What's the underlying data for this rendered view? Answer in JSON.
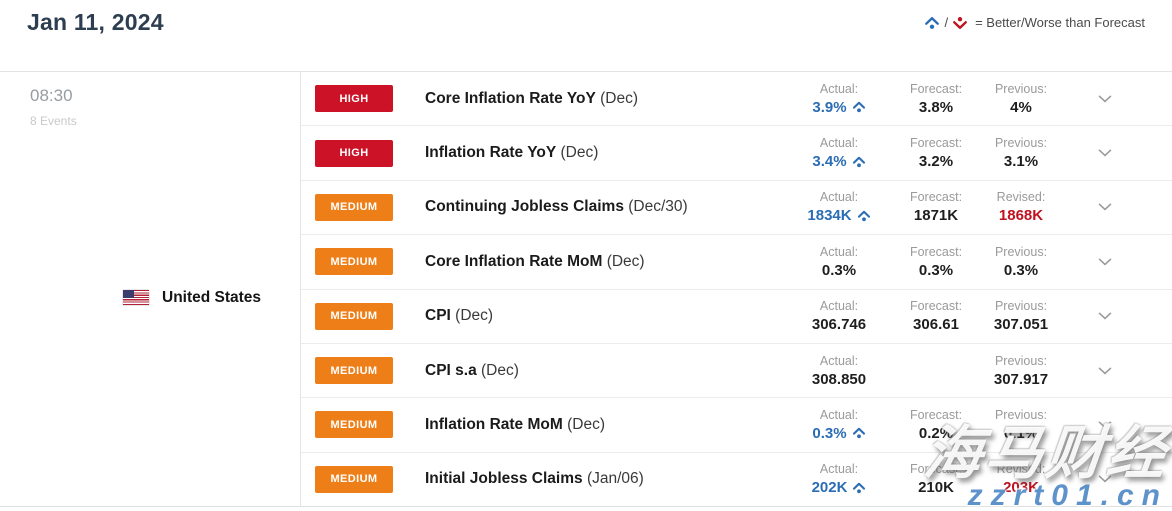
{
  "header": {
    "date": "Jan 11, 2024",
    "legend": {
      "separator": "/",
      "text": "= Better/Worse than Forecast"
    }
  },
  "group": {
    "time": "08:30",
    "events_count": "8 Events",
    "country": "United States"
  },
  "table": {
    "rows": [
      {
        "importance": "HIGH",
        "name": "Core Inflation Rate YoY",
        "period": "(Dec)",
        "columns": [
          {
            "label": "Actual:",
            "value": "3.9%",
            "style": "better"
          },
          {
            "label": "Forecast:",
            "value": "3.8%",
            "style": "normal"
          },
          {
            "label": "Previous:",
            "value": "4%",
            "style": "normal"
          }
        ]
      },
      {
        "importance": "HIGH",
        "name": "Inflation Rate YoY",
        "period": "(Dec)",
        "columns": [
          {
            "label": "Actual:",
            "value": "3.4%",
            "style": "better"
          },
          {
            "label": "Forecast:",
            "value": "3.2%",
            "style": "normal"
          },
          {
            "label": "Previous:",
            "value": "3.1%",
            "style": "normal"
          }
        ]
      },
      {
        "importance": "MEDIUM",
        "name": "Continuing Jobless Claims",
        "period": "(Dec/30)",
        "columns": [
          {
            "label": "Actual:",
            "value": "1834K",
            "style": "better"
          },
          {
            "label": "Forecast:",
            "value": "1871K",
            "style": "normal"
          },
          {
            "label": "Revised:",
            "value": "1868K",
            "style": "revised"
          }
        ]
      },
      {
        "importance": "MEDIUM",
        "name": "Core Inflation Rate MoM",
        "period": "(Dec)",
        "columns": [
          {
            "label": "Actual:",
            "value": "0.3%",
            "style": "normal"
          },
          {
            "label": "Forecast:",
            "value": "0.3%",
            "style": "normal"
          },
          {
            "label": "Previous:",
            "value": "0.3%",
            "style": "normal"
          }
        ]
      },
      {
        "importance": "MEDIUM",
        "name": "CPI",
        "period": "(Dec)",
        "columns": [
          {
            "label": "Actual:",
            "value": "306.746",
            "style": "normal"
          },
          {
            "label": "Forecast:",
            "value": "306.61",
            "style": "normal"
          },
          {
            "label": "Previous:",
            "value": "307.051",
            "style": "normal"
          }
        ]
      },
      {
        "importance": "MEDIUM",
        "name": "CPI s.a",
        "period": "(Dec)",
        "columns": [
          {
            "label": "Actual:",
            "value": "308.850",
            "style": "normal"
          },
          {
            "label": "",
            "value": "",
            "style": "empty"
          },
          {
            "label": "Previous:",
            "value": "307.917",
            "style": "normal"
          }
        ]
      },
      {
        "importance": "MEDIUM",
        "name": "Inflation Rate MoM",
        "period": "(Dec)",
        "columns": [
          {
            "label": "Actual:",
            "value": "0.3%",
            "style": "better"
          },
          {
            "label": "Forecast:",
            "value": "0.2%",
            "style": "normal"
          },
          {
            "label": "Previous:",
            "value": "0.1%",
            "style": "normal"
          }
        ]
      },
      {
        "importance": "MEDIUM",
        "name": "Initial Jobless Claims",
        "period": "(Jan/06)",
        "columns": [
          {
            "label": "Actual:",
            "value": "202K",
            "style": "better"
          },
          {
            "label": "Forecast:",
            "value": "210K",
            "style": "normal"
          },
          {
            "label": "Revised:",
            "value": "203K",
            "style": "revised"
          }
        ]
      }
    ]
  },
  "watermark": {
    "line1": "海马财经",
    "line2": "zzrt01.cn"
  },
  "colors": {
    "high": "#cb1226",
    "medium": "#ee7e17",
    "better": "#2b6db4",
    "worse": "#c0111f",
    "revised": "#c0111f",
    "normal": "#1e1e1e",
    "watermark_url": "#5d92cb"
  }
}
